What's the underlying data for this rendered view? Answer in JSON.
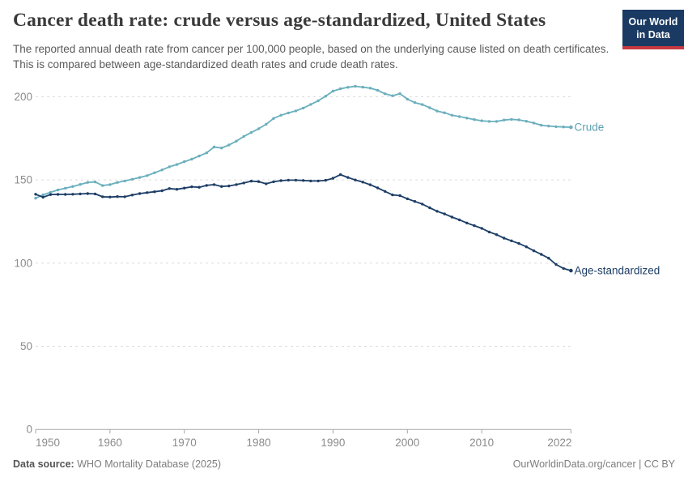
{
  "header": {
    "title": "Cancer death rate: crude versus age-standardized, United States",
    "subtitle": "The reported annual death rate from cancer per 100,000 people, based on the underlying cause listed on death certificates. This is compared between age-standardized death rates and crude death rates.",
    "logo": {
      "line1": "Our World",
      "line2": "in Data",
      "bg_color": "#1a3a63",
      "accent_color": "#c7383f"
    }
  },
  "footer": {
    "source_label": "Data source:",
    "source_value": " WHO Mortality Database (2025)",
    "credit": "OurWorldinData.org/cancer | CC BY"
  },
  "chart_data": {
    "type": "line",
    "title": "Cancer death rate: crude versus age-standardized, United States",
    "xlabel": "",
    "ylabel": "",
    "x_range": [
      1950,
      2022
    ],
    "ylim": [
      0,
      210
    ],
    "yticks": [
      0,
      50,
      100,
      150,
      200
    ],
    "xticks": [
      1950,
      1960,
      1970,
      1980,
      1990,
      2000,
      2010,
      2022
    ],
    "grid": "horizontal-dashed",
    "legend_position": "line-end-labels",
    "axis_color": "#a6a6a6",
    "grid_color": "#dcdcdc",
    "tick_label_color": "#8c8c8c",
    "x": [
      1950,
      1951,
      1952,
      1953,
      1954,
      1955,
      1956,
      1957,
      1958,
      1959,
      1960,
      1961,
      1962,
      1963,
      1964,
      1965,
      1966,
      1967,
      1968,
      1969,
      1970,
      1971,
      1972,
      1973,
      1974,
      1975,
      1976,
      1977,
      1978,
      1979,
      1980,
      1981,
      1982,
      1983,
      1984,
      1985,
      1986,
      1987,
      1988,
      1989,
      1990,
      1991,
      1992,
      1993,
      1994,
      1995,
      1996,
      1997,
      1998,
      1999,
      2000,
      2001,
      2002,
      2003,
      2004,
      2005,
      2006,
      2007,
      2008,
      2009,
      2010,
      2011,
      2012,
      2013,
      2014,
      2015,
      2016,
      2017,
      2018,
      2019,
      2020,
      2021,
      2022
    ],
    "series": [
      {
        "name": "Crude",
        "color": "#6aafbd",
        "label_color": "#5d9fb0",
        "values": [
          139.0,
          141.0,
          142.6,
          144.0,
          145.0,
          146.1,
          147.3,
          148.5,
          148.8,
          146.6,
          147.2,
          148.5,
          149.4,
          150.4,
          151.5,
          152.6,
          154.3,
          156.0,
          157.9,
          159.3,
          161.0,
          162.5,
          164.4,
          166.3,
          169.8,
          169.2,
          171.0,
          173.3,
          176.2,
          178.5,
          180.8,
          183.5,
          187.0,
          188.9,
          190.3,
          191.5,
          193.2,
          195.4,
          197.6,
          200.4,
          203.4,
          204.8,
          205.7,
          206.3,
          205.8,
          205.2,
          203.9,
          201.8,
          200.6,
          201.9,
          198.6,
          196.5,
          195.3,
          193.4,
          191.4,
          190.4,
          188.9,
          188.1,
          187.2,
          186.3,
          185.6,
          185.2,
          185.2,
          186.0,
          186.4,
          186.1,
          185.3,
          184.2,
          182.9,
          182.4,
          182.0,
          181.9,
          181.7
        ]
      },
      {
        "name": "Age-standardized",
        "color": "#1d3e66",
        "label_color": "#1d3e66",
        "values": [
          141.4,
          139.6,
          141.2,
          141.3,
          141.3,
          141.4,
          141.6,
          141.8,
          141.6,
          139.9,
          139.7,
          140.0,
          139.9,
          140.9,
          141.8,
          142.4,
          142.9,
          143.5,
          144.8,
          144.4,
          145.1,
          145.9,
          145.6,
          146.7,
          147.2,
          146.1,
          146.4,
          147.2,
          148.2,
          149.3,
          149.0,
          147.7,
          148.9,
          149.6,
          149.9,
          149.9,
          149.7,
          149.4,
          149.4,
          149.8,
          151.0,
          153.2,
          151.5,
          150.0,
          148.7,
          147.1,
          145.2,
          143.1,
          141.0,
          140.6,
          138.7,
          137.1,
          135.5,
          133.3,
          131.2,
          129.6,
          127.7,
          126.0,
          124.1,
          122.5,
          120.9,
          118.7,
          117.1,
          115.0,
          113.4,
          111.8,
          109.8,
          107.4,
          105.3,
          103.0,
          99.2,
          96.8,
          95.5
        ]
      }
    ]
  }
}
